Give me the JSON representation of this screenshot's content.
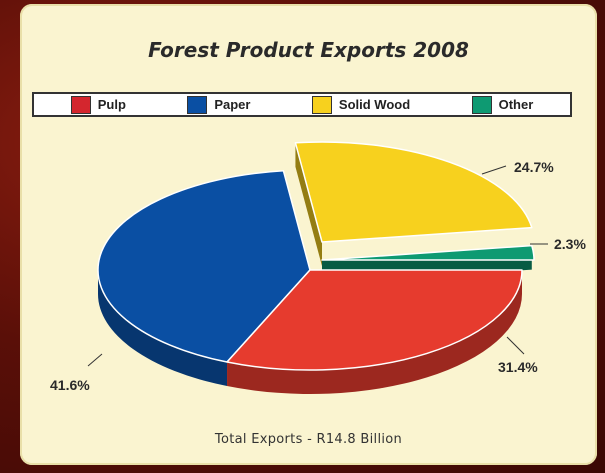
{
  "chart_data": {
    "type": "pie",
    "title": "Forest Product Exports 2008",
    "slices": [
      {
        "label": "Pulp",
        "value": 31.4,
        "color": "#e63b2e",
        "value_label": "31.4%"
      },
      {
        "label": "Paper",
        "value": 41.6,
        "color": "#0a4fa3",
        "value_label": "41.6%"
      },
      {
        "label": "Solid Wood",
        "value": 24.7,
        "color": "#f7d11e",
        "value_label": "24.7%"
      },
      {
        "label": "Other",
        "value": 2.3,
        "color": "#0e9a72",
        "value_label": "2.3%"
      }
    ],
    "legend": {
      "placement": "top"
    },
    "footer": "Total Exports - R14.8 Billion"
  }
}
